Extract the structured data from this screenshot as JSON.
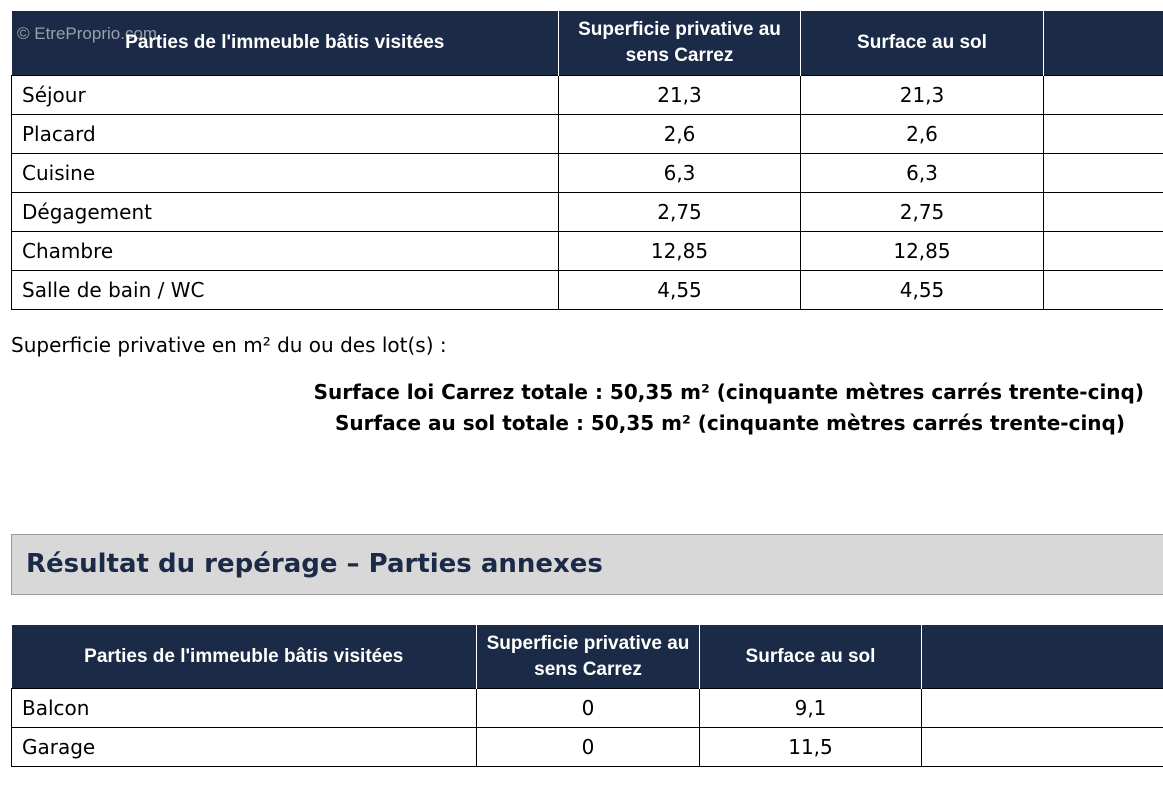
{
  "watermark": "© EtreProprio.com",
  "main_table": {
    "headers": [
      "Parties de l'immeuble bâtis visitées",
      "Superficie privative au sens Carrez",
      "Surface au sol",
      ""
    ],
    "rows": [
      {
        "label": "Séjour",
        "carrez": "21,3",
        "sol": "21,3"
      },
      {
        "label": "Placard",
        "carrez": "2,6",
        "sol": "2,6"
      },
      {
        "label": "Cuisine",
        "carrez": "6,3",
        "sol": "6,3"
      },
      {
        "label": "Dégagement",
        "carrez": "2,75",
        "sol": "2,75"
      },
      {
        "label": "Chambre",
        "carrez": "12,85",
        "sol": "12,85"
      },
      {
        "label": "Salle de bain / WC",
        "carrez": "4,55",
        "sol": "4,55"
      }
    ]
  },
  "lot_line": "Superficie privative en m² du ou des lot(s) :",
  "totals": {
    "carrez": "Surface loi Carrez totale : 50,35 m² (cinquante mètres carrés trente-cinq)",
    "sol": "Surface au sol totale : 50,35 m² (cinquante mètres carrés trente-cinq)"
  },
  "annex_section": {
    "title": "Résultat du repérage – Parties annexes",
    "headers": [
      "Parties de l'immeuble bâtis visitées",
      "Superficie privative au sens Carrez",
      "Surface au sol",
      ""
    ],
    "rows": [
      {
        "label": "Balcon",
        "carrez": "0",
        "sol": "9,1"
      },
      {
        "label": "Garage",
        "carrez": "0",
        "sol": "11,5"
      }
    ]
  },
  "colors": {
    "header_bg": "#1b2a46",
    "banner_bg": "#d8d8d8",
    "title_color": "#1b2a46"
  }
}
